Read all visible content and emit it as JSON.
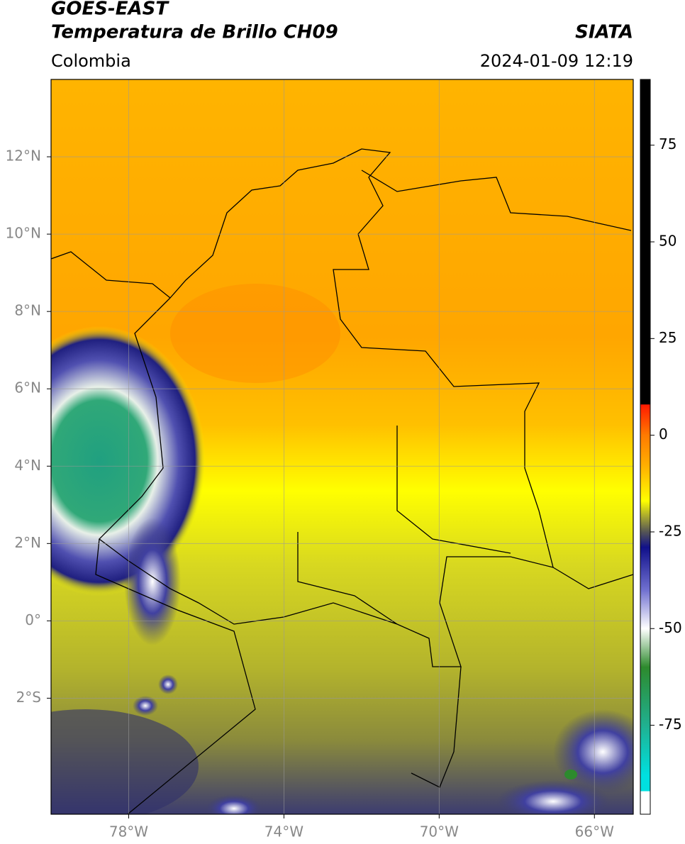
{
  "header": {
    "title": "GOES-EAST",
    "subtitle": "Temperatura de Brillo CH09",
    "source": "SIATA",
    "region": "Colombia",
    "timestamp": "2024-01-09 12:19"
  },
  "map": {
    "xlim": [
      -80,
      -65
    ],
    "ylim": [
      -5,
      14
    ],
    "xticks": [
      {
        "value": -78,
        "label": "78°W"
      },
      {
        "value": -74,
        "label": "74°W"
      },
      {
        "value": -70,
        "label": "70°W"
      },
      {
        "value": -66,
        "label": "66°W"
      }
    ],
    "yticks": [
      {
        "value": 12,
        "label": "12°N"
      },
      {
        "value": 10,
        "label": "10°N"
      },
      {
        "value": 8,
        "label": "8°N"
      },
      {
        "value": 6,
        "label": "6°N"
      },
      {
        "value": 4,
        "label": "4°N"
      },
      {
        "value": 2,
        "label": "2°N"
      },
      {
        "value": 0,
        "label": "0°"
      },
      {
        "value": -2,
        "label": "2°S"
      }
    ],
    "grid": true
  },
  "colorbar": {
    "lim": [
      -98,
      92
    ],
    "ticks": [
      75,
      50,
      25,
      0,
      -25,
      -50,
      -75
    ],
    "stops": [
      {
        "value": 92,
        "color": "#000000"
      },
      {
        "value": 8,
        "color": "#000000"
      },
      {
        "value": 7.9,
        "color": "#ff1a00"
      },
      {
        "value": 0,
        "color": "#ff7a00"
      },
      {
        "value": -8,
        "color": "#ffb000"
      },
      {
        "value": -17,
        "color": "#ffff00"
      },
      {
        "value": -21,
        "color": "#a8a830"
      },
      {
        "value": -25,
        "color": "#555555"
      },
      {
        "value": -29,
        "color": "#10108a"
      },
      {
        "value": -40,
        "color": "#7070d0"
      },
      {
        "value": -50,
        "color": "#ffffff"
      },
      {
        "value": -60,
        "color": "#2d8a2d"
      },
      {
        "value": -75,
        "color": "#20b090"
      },
      {
        "value": -88,
        "color": "#00e0e0"
      },
      {
        "value": -92,
        "color": "#00e0e0"
      },
      {
        "value": -92.1,
        "color": "#ffffff"
      },
      {
        "value": -98,
        "color": "#ffffff"
      }
    ]
  }
}
